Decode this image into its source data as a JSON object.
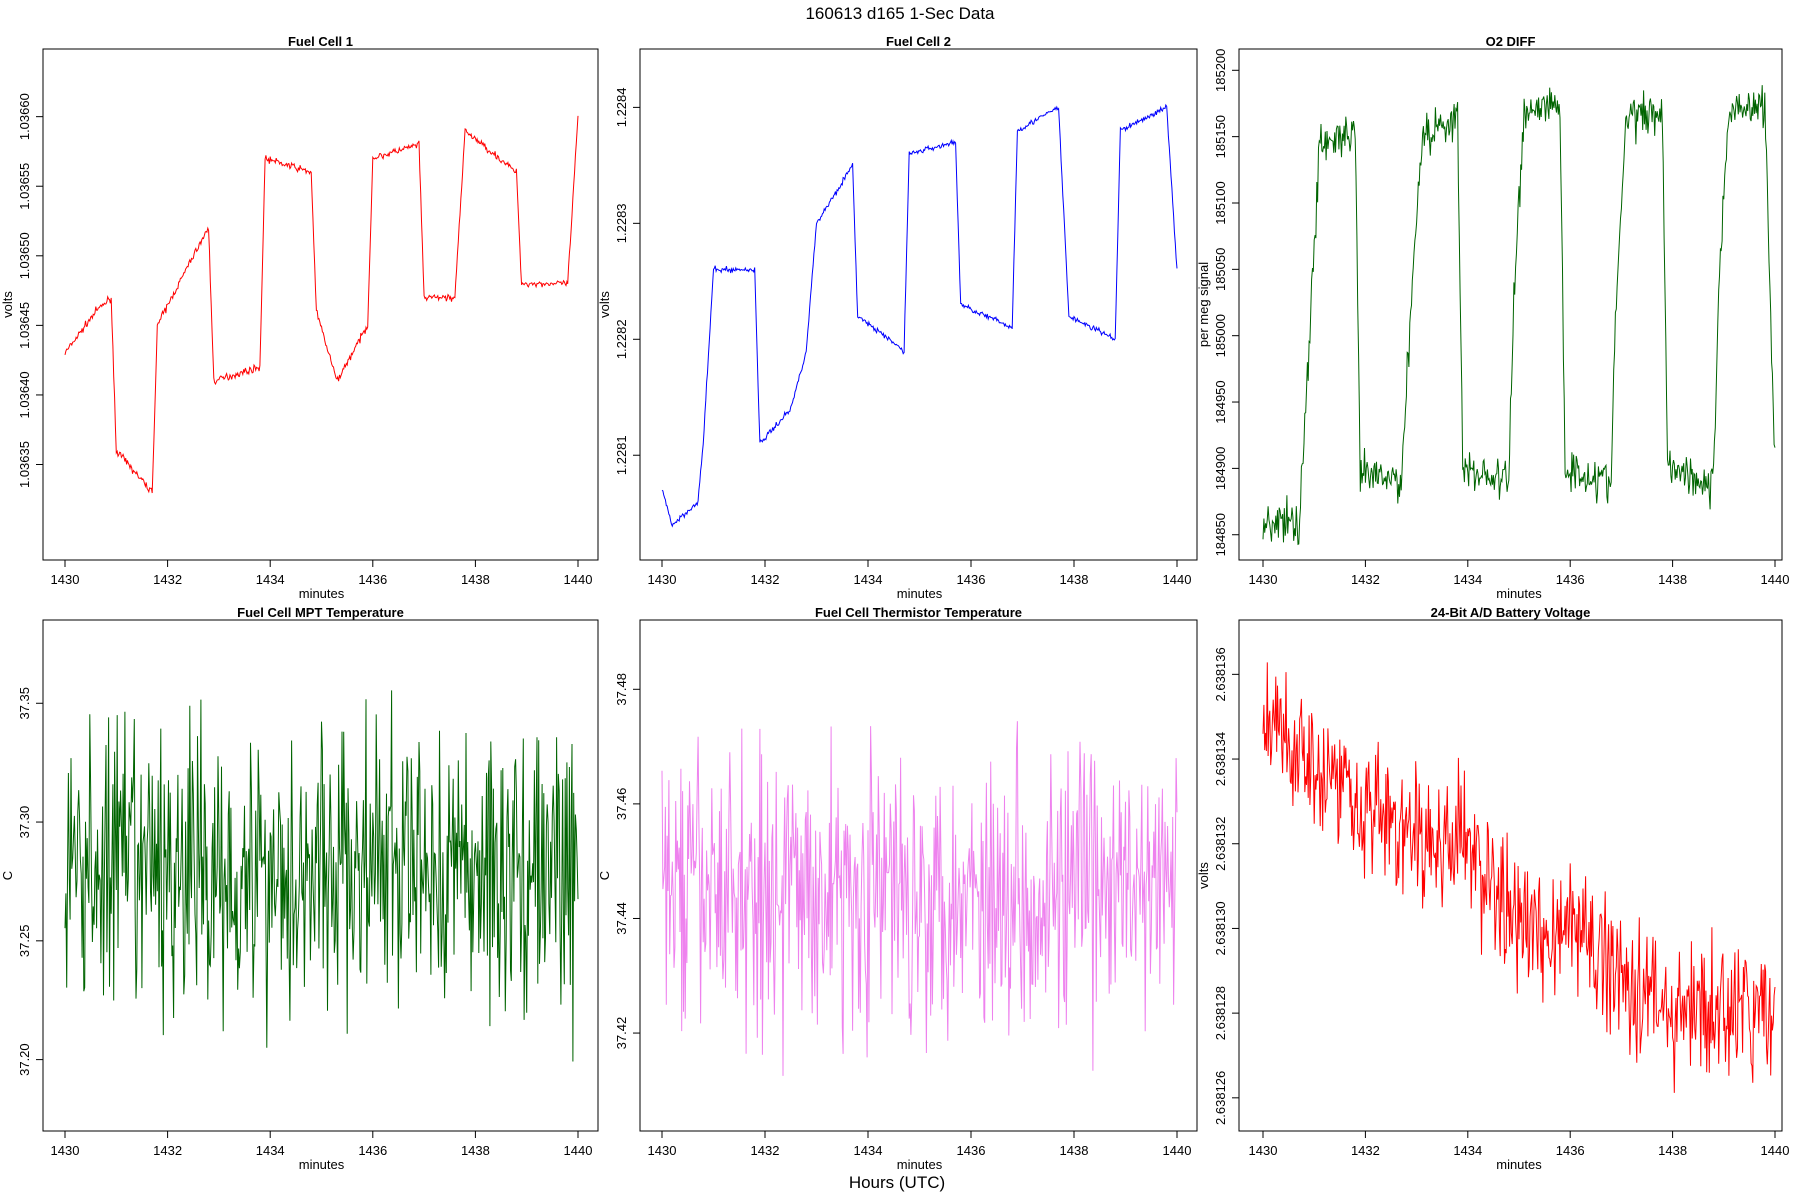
{
  "figure": {
    "title": "160613   d165   1-Sec Data",
    "xlabel": "Hours (UTC)"
  },
  "chart_data": [
    {
      "type": "line",
      "title": "Fuel Cell 1",
      "xlabel": "minutes",
      "ylabel": "volts",
      "color": "#ff0000",
      "xlim": [
        1430,
        1440
      ],
      "xticks": [
        1430,
        1432,
        1434,
        1436,
        1438,
        1440
      ],
      "ylim": [
        1.03629,
        1.03664
      ],
      "yticks": [
        1.03635,
        1.0364,
        1.03645,
        1.0365,
        1.03655,
        1.0366
      ],
      "ytick_labels": [
        "1.03635",
        "1.03640",
        "1.03645",
        "1.03650",
        "1.03655",
        "1.03660"
      ],
      "series": [
        {
          "name": "Fuel Cell 1",
          "x": [
            1430,
            1430.6,
            1430.9,
            1431.0,
            1431.7,
            1431.8,
            1432.5,
            1432.8,
            1432.9,
            1433.8,
            1433.9,
            1434.8,
            1434.9,
            1435.3,
            1435.9,
            1436.0,
            1436.9,
            1437.0,
            1437.6,
            1437.8,
            1438.8,
            1438.9,
            1439.8,
            1440.0
          ],
          "y": [
            1.03643,
            1.03646,
            1.03647,
            1.03636,
            1.03633,
            1.03645,
            1.0365,
            1.03652,
            1.03641,
            1.03642,
            1.03657,
            1.03656,
            1.03646,
            1.03641,
            1.03645,
            1.03657,
            1.03658,
            1.03647,
            1.03647,
            1.03659,
            1.03656,
            1.03648,
            1.03648,
            1.0366
          ]
        }
      ]
    },
    {
      "type": "line",
      "title": "Fuel Cell 2",
      "xlabel": "minutes",
      "ylabel": "volts",
      "color": "#0000ff",
      "xlim": [
        1430,
        1440
      ],
      "xticks": [
        1430,
        1432,
        1434,
        1436,
        1438,
        1440
      ],
      "ylim": [
        1.22802,
        1.22844
      ],
      "yticks": [
        1.2281,
        1.2282,
        1.2283,
        1.2284
      ],
      "ytick_labels": [
        "1.2281",
        "1.2282",
        "1.2283",
        "1.2284"
      ],
      "series": [
        {
          "name": "Fuel Cell 2",
          "x": [
            1430,
            1430.2,
            1430.7,
            1430.8,
            1431.0,
            1431.2,
            1431.8,
            1431.9,
            1432.5,
            1432.8,
            1433.0,
            1433.7,
            1433.8,
            1434.7,
            1434.8,
            1435.7,
            1435.8,
            1436.8,
            1436.9,
            1437.7,
            1437.9,
            1438.8,
            1438.9,
            1439.8,
            1440.0
          ],
          "y": [
            1.22807,
            1.22804,
            1.22806,
            1.22811,
            1.22826,
            1.22826,
            1.22826,
            1.22811,
            1.22814,
            1.22819,
            1.2283,
            1.22835,
            1.22822,
            1.22819,
            1.22836,
            1.22837,
            1.22823,
            1.22821,
            1.22838,
            1.2284,
            1.22822,
            1.2282,
            1.22838,
            1.2284,
            1.22826
          ]
        }
      ]
    },
    {
      "type": "line",
      "title": "O2 DIFF",
      "xlabel": "minutes",
      "ylabel": "per meg signal",
      "color": "#006400",
      "xlim": [
        1430,
        1440
      ],
      "xticks": [
        1430,
        1432,
        1434,
        1436,
        1438,
        1440
      ],
      "ylim": [
        184840,
        185207
      ],
      "yticks": [
        184850,
        184900,
        184950,
        185000,
        185050,
        185100,
        185150,
        185200
      ],
      "ytick_labels": [
        "184850",
        "184900",
        "184950",
        "185000",
        "185050",
        "185100",
        "185150",
        "185200"
      ],
      "series": [
        {
          "name": "O2 DIFF",
          "x": [
            1430,
            1430.7,
            1430.9,
            1431.1,
            1431.8,
            1431.9,
            1432.7,
            1432.9,
            1433.1,
            1433.8,
            1433.9,
            1434.8,
            1434.9,
            1435.1,
            1435.8,
            1435.9,
            1436.8,
            1436.9,
            1437.1,
            1437.8,
            1437.9,
            1438.8,
            1438.9,
            1439.1,
            1439.8,
            1440.0
          ],
          "y": [
            184860,
            184858,
            184990,
            185145,
            185150,
            184895,
            184890,
            185030,
            185150,
            185165,
            184900,
            184890,
            185030,
            185170,
            185175,
            184900,
            184890,
            185030,
            185165,
            185170,
            184905,
            184885,
            185040,
            185170,
            185175,
            184900
          ]
        }
      ]
    },
    {
      "type": "line",
      "title": "Fuel Cell MPT Temperature",
      "xlabel": "minutes",
      "ylabel": "C",
      "color": "#006400",
      "xlim": [
        1430,
        1440
      ],
      "xticks": [
        1430,
        1432,
        1434,
        1436,
        1438,
        1440
      ],
      "ylim": [
        37.175,
        37.38
      ],
      "yticks": [
        37.2,
        37.25,
        37.3,
        37.35
      ],
      "ytick_labels": [
        "37.20",
        "37.25",
        "37.30",
        "37.35"
      ],
      "series": [
        {
          "name": "MPT Temperature",
          "x": [
            1430,
            1440
          ],
          "y": [
            37.28,
            37.28
          ]
        }
      ]
    },
    {
      "type": "line",
      "title": "Fuel Cell Thermistor Temperature",
      "xlabel": "minutes",
      "ylabel": "C",
      "color": "#ee82ee",
      "xlim": [
        1430,
        1440
      ],
      "xticks": [
        1430,
        1432,
        1434,
        1436,
        1438,
        1440
      ],
      "ylim": [
        37.405,
        37.49
      ],
      "yticks": [
        37.42,
        37.44,
        37.46,
        37.48
      ],
      "ytick_labels": [
        "37.42",
        "37.44",
        "37.46",
        "37.48"
      ],
      "series": [
        {
          "name": "Thermistor Temperature",
          "x": [
            1430,
            1440
          ],
          "y": [
            37.445,
            37.445
          ]
        }
      ]
    },
    {
      "type": "line",
      "title": "24-Bit A/D Battery Voltage",
      "xlabel": "minutes",
      "ylabel": "volts",
      "color": "#ff0000",
      "xlim": [
        1430,
        1440
      ],
      "xticks": [
        1430,
        1432,
        1434,
        1436,
        1438,
        1440
      ],
      "ylim": [
        2.6381255,
        2.638137
      ],
      "yticks": [
        2.638126,
        2.638128,
        2.63813,
        2.638132,
        2.638134,
        2.638136
      ],
      "ytick_labels": [
        "2.638126",
        "2.638128",
        "2.638130",
        "2.638132",
        "2.638134",
        "2.638136"
      ],
      "series": [
        {
          "name": "Battery Voltage",
          "x": [
            1430,
            1431,
            1432,
            1433,
            1434,
            1435,
            1436,
            1437,
            1438,
            1439,
            1440
          ],
          "y": [
            2.638135,
            2.638134,
            2.638133,
            2.638132,
            2.638132,
            2.63813,
            2.63813,
            2.638129,
            2.638128,
            2.638128,
            2.638128
          ]
        }
      ]
    }
  ]
}
